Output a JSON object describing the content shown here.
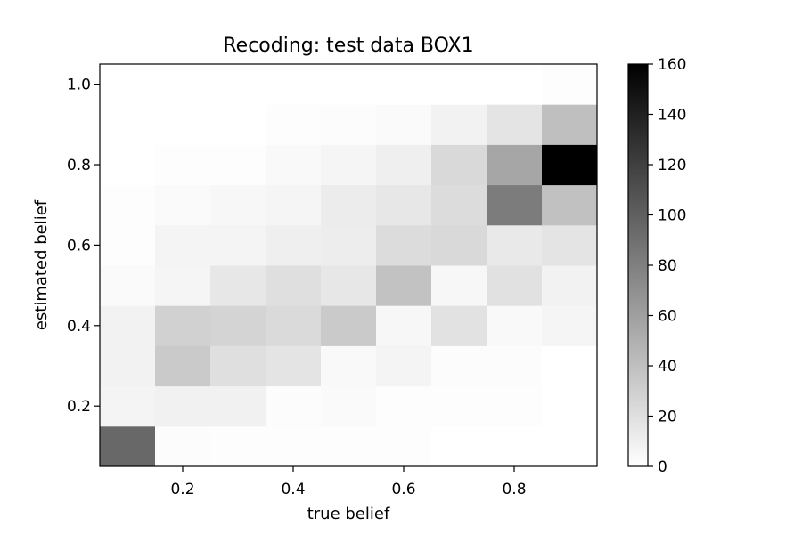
{
  "chart_data": {
    "type": "heatmap",
    "title": "Recoding: test data BOX1",
    "xlabel": "true belief",
    "ylabel": "estimated belief",
    "x_edges": [
      0.05,
      0.15,
      0.25,
      0.35,
      0.45,
      0.55,
      0.65,
      0.75,
      0.85,
      0.95
    ],
    "y_edges": [
      0.05,
      0.15,
      0.25,
      0.35,
      0.45,
      0.55,
      0.65,
      0.75,
      0.85,
      0.95,
      1.05
    ],
    "xlim": [
      0.05,
      0.95
    ],
    "ylim": [
      0.05,
      1.05
    ],
    "xticks": [
      0.2,
      0.4,
      0.6,
      0.8
    ],
    "xtick_labels": [
      "0.2",
      "0.4",
      "0.6",
      "0.8"
    ],
    "yticks": [
      0.2,
      0.4,
      0.6,
      0.8,
      1.0
    ],
    "ytick_labels": [
      "0.2",
      "0.4",
      "0.6",
      "0.8",
      "1.0"
    ],
    "values": [
      [
        95,
        2,
        1,
        1,
        1,
        1,
        0,
        0,
        0
      ],
      [
        7,
        9,
        9,
        2,
        3,
        1,
        1,
        1,
        0
      ],
      [
        8,
        33,
        20,
        17,
        4,
        7,
        2,
        2,
        0
      ],
      [
        8,
        29,
        27,
        23,
        33,
        5,
        18,
        4,
        6
      ],
      [
        3,
        6,
        15,
        20,
        15,
        38,
        5,
        19,
        8
      ],
      [
        1,
        7,
        7,
        10,
        11,
        22,
        24,
        14,
        17
      ],
      [
        1,
        3,
        5,
        6,
        12,
        15,
        22,
        82,
        39
      ],
      [
        0,
        1,
        1,
        4,
        6,
        10,
        24,
        56,
        160
      ],
      [
        0,
        0,
        0,
        1,
        2,
        3,
        8,
        17,
        40
      ],
      [
        0,
        0,
        0,
        0,
        0,
        0,
        0,
        0,
        1
      ]
    ],
    "colormap": "Greys",
    "colorbar": {
      "min": 0,
      "max": 160,
      "ticks": [
        0,
        20,
        40,
        60,
        80,
        100,
        120,
        140,
        160
      ],
      "tick_labels": [
        "0",
        "20",
        "40",
        "60",
        "80",
        "100",
        "120",
        "140",
        "160"
      ]
    },
    "grid": false,
    "legend": "none"
  }
}
